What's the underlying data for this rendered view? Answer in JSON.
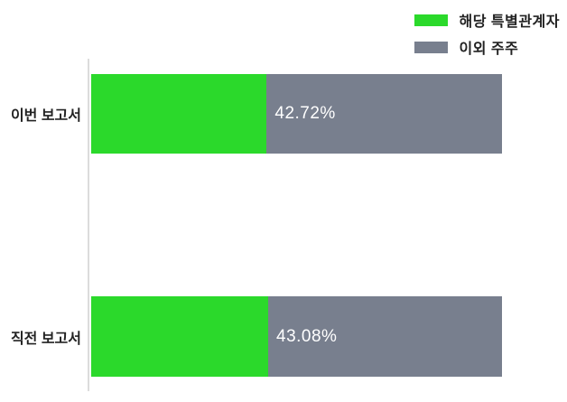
{
  "chart_data": {
    "type": "bar",
    "orientation": "horizontal",
    "stacked": true,
    "title": "",
    "categories": [
      "이번 보고서",
      "직전 보고서"
    ],
    "series": [
      {
        "name": "해당 특별관계자",
        "color": "#2BD92B",
        "values": [
          42.72,
          43.08
        ]
      },
      {
        "name": "이외 주주",
        "color": "#787F8E",
        "values": [
          57.28,
          56.92
        ]
      }
    ],
    "bar_value_labels": [
      "42.72%",
      "43.08%"
    ],
    "value_label_color": "#FFFFFF",
    "xlim": [
      0,
      100
    ],
    "legend_position": "top-right",
    "grid": false,
    "axis_line_color": "#DCDCDC",
    "background_color": "#FFFFFF",
    "category_label_color": "#222222"
  }
}
